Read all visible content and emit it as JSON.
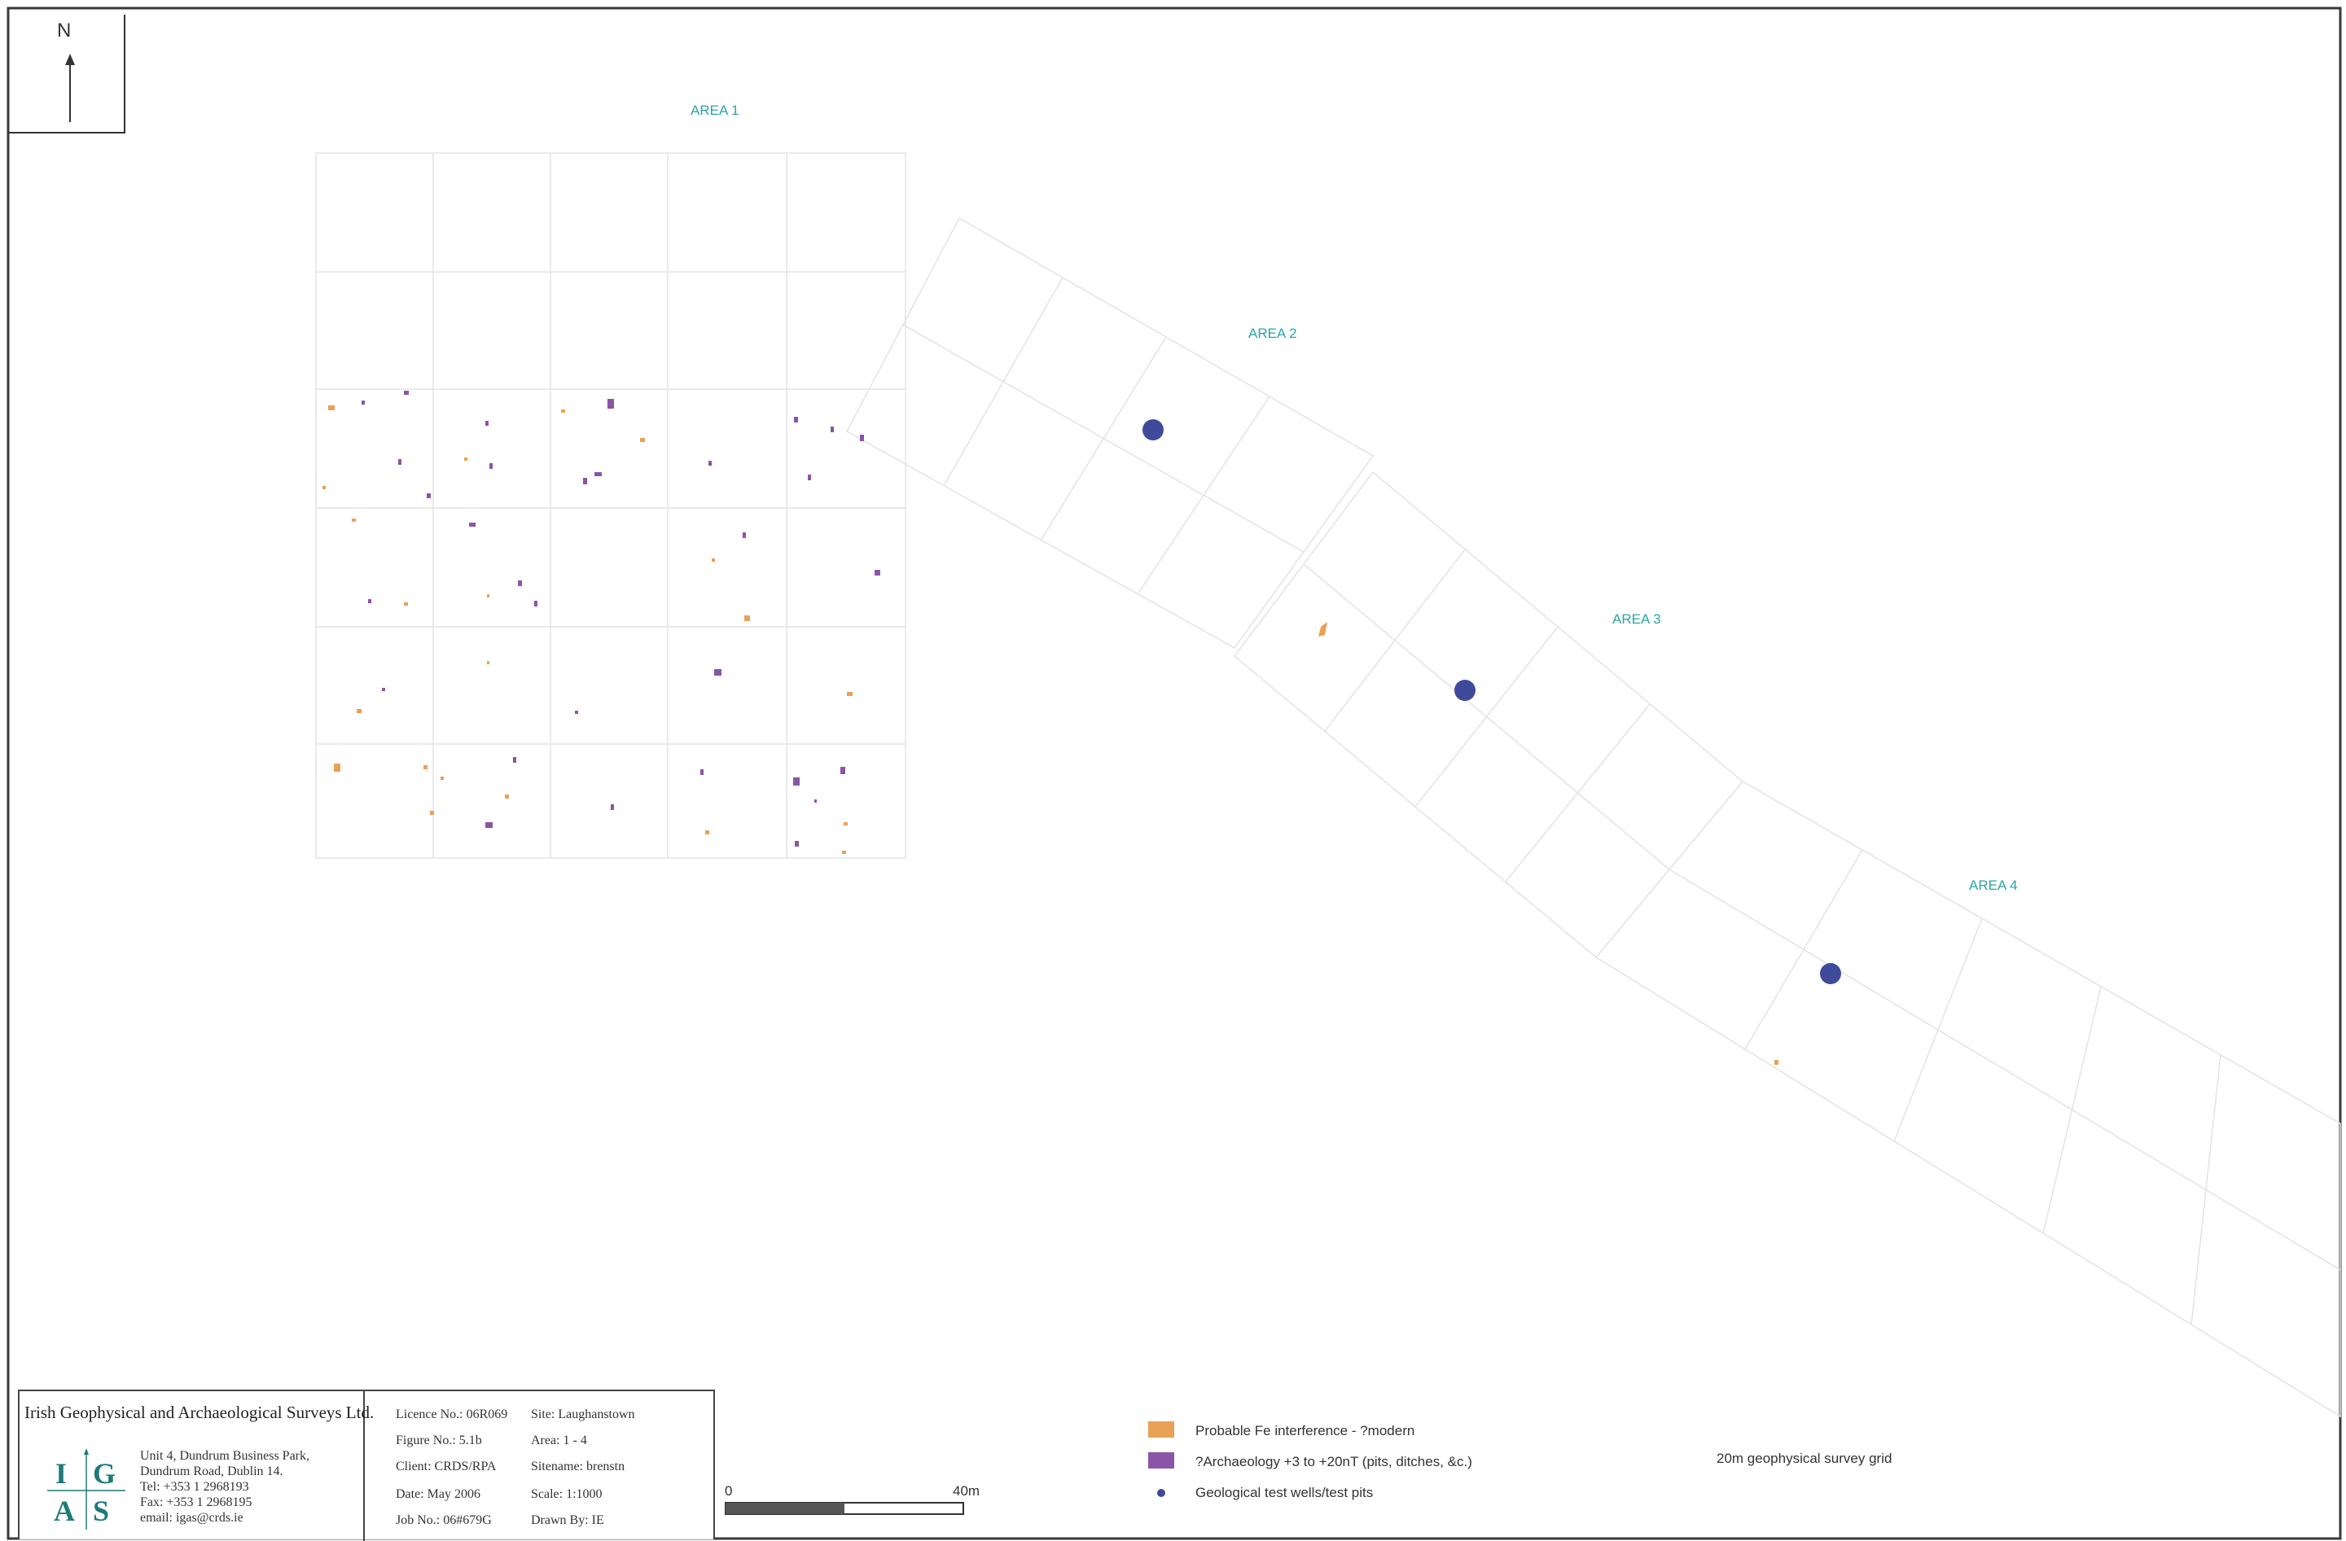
{
  "north": {
    "letter": "N"
  },
  "areas": [
    {
      "name": "area-1",
      "label": "AREA 1"
    },
    {
      "name": "area-2",
      "label": "AREA 2"
    },
    {
      "name": "area-3",
      "label": "AREA 3"
    },
    {
      "name": "area-4",
      "label": "AREA 4"
    }
  ],
  "colors": {
    "fe_interference": "#e9a155",
    "archaeology": "#8a55a8",
    "test_pits": "#3f4a9a",
    "grid": "#e3e3e3",
    "frame": "#3a3a3a",
    "area_label": "#2aa5a5"
  },
  "titleblock": {
    "company": "Irish Geophysical and Archaeological Surveys Ltd.",
    "logo_letters": [
      "I",
      "G",
      "A",
      "S"
    ],
    "address": [
      "Unit 4, Dundrum Business Park,",
      "Dundrum Road, Dublin 14.",
      "Tel: +353 1 2968193",
      "Fax: +353 1 2968195",
      "email: igas@crds.ie"
    ],
    "licence": "Licence No.: 06R069",
    "site": "Site: Laughanstown",
    "figure": "Figure No.: 5.1b",
    "area": "Area: 1 - 4",
    "client": "Client: CRDS/RPA",
    "sitename": "Sitename: brenstn",
    "date": "Date: May 2006",
    "scale": "Scale: 1:1000",
    "job": "Job No.: 06#679G",
    "drawn": "Drawn By: IE"
  },
  "scalebar": {
    "start_label": "0",
    "end_label": "40m"
  },
  "legend": {
    "fe": "Probable Fe interference - ?modern",
    "archaeology": "?Archaeology +3 to +20nT (pits, ditches, &c.)",
    "pits": "Geological test wells/test pits",
    "grid": "20m geophysical survey grid"
  }
}
